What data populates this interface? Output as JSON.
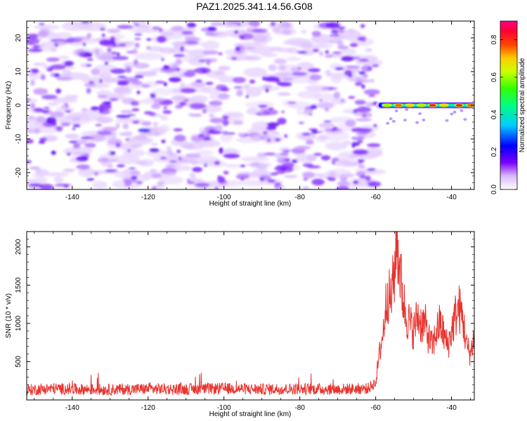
{
  "figure_title": "PAZ1.2025.341.14.56.G08",
  "chart_data": [
    {
      "type": "heatmap",
      "panel": "spectrogram",
      "xlabel": "Height of straight line (km)",
      "ylabel": "Frequency (Hz)",
      "xlim": [
        -152,
        -34
      ],
      "ylim": [
        -25,
        25
      ],
      "x_ticks": [
        -140,
        -120,
        -100,
        -80,
        -60,
        -40
      ],
      "y_ticks": [
        -20,
        -10,
        0,
        10,
        20
      ],
      "noise_region_x": [
        -152,
        -60
      ],
      "signal_region_x": [
        -60,
        -34
      ],
      "signal_frequency_hz": 0,
      "signal_peaks": [
        {
          "x": -57,
          "amplitude": 0.5
        },
        {
          "x": -54,
          "amplitude": 0.85
        },
        {
          "x": -51,
          "amplitude": 0.7
        },
        {
          "x": -48,
          "amplitude": 0.55
        },
        {
          "x": -45,
          "amplitude": 0.9
        },
        {
          "x": -42,
          "amplitude": 0.65
        },
        {
          "x": -38,
          "amplitude": 0.95
        },
        {
          "x": -35,
          "amplitude": 0.85
        }
      ],
      "colorbar": {
        "label": "Normalized spectral amplitude",
        "range": [
          0,
          0.9
        ],
        "ticks": [
          "0.0",
          "0.2",
          "0.4",
          "0.6",
          "0.8"
        ]
      }
    },
    {
      "type": "line",
      "panel": "snr",
      "xlabel": "Height of straight line (km)",
      "ylabel": "SNR (10 * v/v)",
      "xlim": [
        -152,
        -34
      ],
      "ylim": [
        0,
        2200
      ],
      "x_ticks": [
        -140,
        -120,
        -100,
        -80,
        -60,
        -40
      ],
      "y_ticks": [
        500,
        1000,
        1500,
        2000
      ],
      "color": "#e8332e",
      "series": [
        {
          "name": "SNR",
          "x": [
            -152,
            -145,
            -140,
            -130,
            -120,
            -110,
            -100,
            -90,
            -80,
            -70,
            -62,
            -60,
            -59,
            -58,
            -57,
            -56,
            -55,
            -54.5,
            -54,
            -53,
            -52,
            -51,
            -50,
            -49,
            -48,
            -47,
            -46,
            -45,
            -44,
            -43,
            -42,
            -41,
            -40,
            -39,
            -38,
            -37,
            -36,
            -35,
            -34
          ],
          "y": [
            130,
            150,
            140,
            135,
            145,
            140,
            150,
            140,
            145,
            140,
            150,
            230,
            600,
            900,
            1400,
            1300,
            1700,
            2200,
            1900,
            1400,
            1100,
            1000,
            900,
            1100,
            1000,
            1000,
            800,
            700,
            900,
            1000,
            850,
            700,
            900,
            1100,
            1200,
            1050,
            700,
            600,
            850
          ]
        }
      ]
    }
  ]
}
